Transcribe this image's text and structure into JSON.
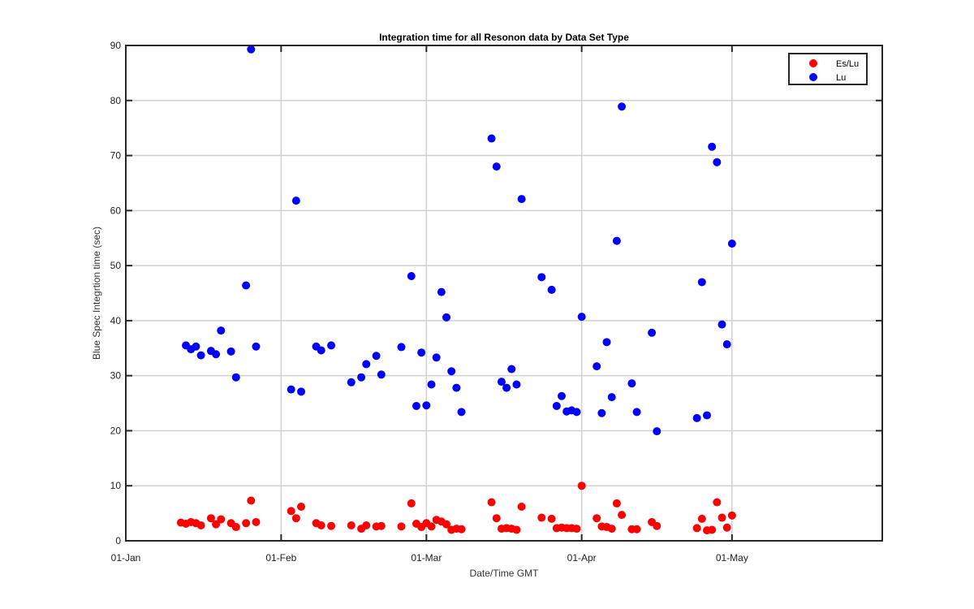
{
  "chart_data": {
    "type": "scatter",
    "title": "Integration time for all Resonon data by Data Set Type",
    "xlabel": "Date/Time GMT",
    "ylabel": "Blue Spec Integrtion time (sec)",
    "x_axis_kind": "date",
    "year": 2000,
    "xlim": [
      "2000-01-01",
      "2000-05-31"
    ],
    "ylim": [
      0,
      90
    ],
    "x_ticks": [
      {
        "date": "2000-01-01",
        "label": "01-Jan"
      },
      {
        "date": "2000-02-01",
        "label": "01-Feb"
      },
      {
        "date": "2000-03-01",
        "label": "01-Mar"
      },
      {
        "date": "2000-04-01",
        "label": "01-Apr"
      },
      {
        "date": "2000-05-01",
        "label": "01-May"
      }
    ],
    "y_ticks": [
      0,
      10,
      20,
      30,
      40,
      50,
      60,
      70,
      80,
      90
    ],
    "grid": true,
    "legend_position": "top-right",
    "series": [
      {
        "name": "Es/Lu",
        "color": "#ff0000",
        "points": [
          {
            "x": "2000-01-12",
            "y": 3.3
          },
          {
            "x": "2000-01-13",
            "y": 3.1
          },
          {
            "x": "2000-01-14",
            "y": 3.4
          },
          {
            "x": "2000-01-15",
            "y": 3.2
          },
          {
            "x": "2000-01-16",
            "y": 2.8
          },
          {
            "x": "2000-01-18",
            "y": 4.1
          },
          {
            "x": "2000-01-19",
            "y": 3.0
          },
          {
            "x": "2000-01-20",
            "y": 3.9
          },
          {
            "x": "2000-01-22",
            "y": 3.2
          },
          {
            "x": "2000-01-23",
            "y": 2.5
          },
          {
            "x": "2000-01-25",
            "y": 3.2
          },
          {
            "x": "2000-01-26",
            "y": 7.3
          },
          {
            "x": "2000-01-27",
            "y": 3.4
          },
          {
            "x": "2000-02-03",
            "y": 5.4
          },
          {
            "x": "2000-02-04",
            "y": 4.1
          },
          {
            "x": "2000-02-05",
            "y": 6.2
          },
          {
            "x": "2000-02-08",
            "y": 3.2
          },
          {
            "x": "2000-02-09",
            "y": 2.8
          },
          {
            "x": "2000-02-11",
            "y": 2.7
          },
          {
            "x": "2000-02-15",
            "y": 2.8
          },
          {
            "x": "2000-02-17",
            "y": 2.2
          },
          {
            "x": "2000-02-18",
            "y": 2.8
          },
          {
            "x": "2000-02-20",
            "y": 2.6
          },
          {
            "x": "2000-02-21",
            "y": 2.7
          },
          {
            "x": "2000-02-25",
            "y": 2.6
          },
          {
            "x": "2000-02-27",
            "y": 6.8
          },
          {
            "x": "2000-02-28",
            "y": 3.1
          },
          {
            "x": "2000-02-29",
            "y": 2.5
          },
          {
            "x": "2000-03-01",
            "y": 3.2
          },
          {
            "x": "2000-03-02",
            "y": 2.6
          },
          {
            "x": "2000-03-03",
            "y": 3.8
          },
          {
            "x": "2000-03-04",
            "y": 3.5
          },
          {
            "x": "2000-03-05",
            "y": 3.0
          },
          {
            "x": "2000-03-06",
            "y": 2.0
          },
          {
            "x": "2000-03-07",
            "y": 2.2
          },
          {
            "x": "2000-03-08",
            "y": 2.1
          },
          {
            "x": "2000-03-14",
            "y": 7.0
          },
          {
            "x": "2000-03-15",
            "y": 4.1
          },
          {
            "x": "2000-03-16",
            "y": 2.2
          },
          {
            "x": "2000-03-17",
            "y": 2.3
          },
          {
            "x": "2000-03-18",
            "y": 2.2
          },
          {
            "x": "2000-03-19",
            "y": 2.0
          },
          {
            "x": "2000-03-20",
            "y": 6.2
          },
          {
            "x": "2000-03-24",
            "y": 4.2
          },
          {
            "x": "2000-03-26",
            "y": 4.0
          },
          {
            "x": "2000-03-27",
            "y": 2.3
          },
          {
            "x": "2000-03-28",
            "y": 2.4
          },
          {
            "x": "2000-03-29",
            "y": 2.3
          },
          {
            "x": "2000-03-30",
            "y": 2.3
          },
          {
            "x": "2000-03-31",
            "y": 2.2
          },
          {
            "x": "2000-04-01",
            "y": 10.0
          },
          {
            "x": "2000-04-04",
            "y": 4.1
          },
          {
            "x": "2000-04-05",
            "y": 2.6
          },
          {
            "x": "2000-04-06",
            "y": 2.5
          },
          {
            "x": "2000-04-07",
            "y": 2.2
          },
          {
            "x": "2000-04-08",
            "y": 6.8
          },
          {
            "x": "2000-04-09",
            "y": 4.7
          },
          {
            "x": "2000-04-11",
            "y": 2.1
          },
          {
            "x": "2000-04-12",
            "y": 2.1
          },
          {
            "x": "2000-04-15",
            "y": 3.4
          },
          {
            "x": "2000-04-16",
            "y": 2.7
          },
          {
            "x": "2000-04-24",
            "y": 2.3
          },
          {
            "x": "2000-04-25",
            "y": 4.0
          },
          {
            "x": "2000-04-26",
            "y": 1.9
          },
          {
            "x": "2000-04-27",
            "y": 2.0
          },
          {
            "x": "2000-04-28",
            "y": 7.0
          },
          {
            "x": "2000-04-29",
            "y": 4.2
          },
          {
            "x": "2000-04-30",
            "y": 2.4
          },
          {
            "x": "2000-05-01",
            "y": 4.6
          }
        ]
      },
      {
        "name": "Lu",
        "color": "#0000ff",
        "points": [
          {
            "x": "2000-01-13",
            "y": 35.5
          },
          {
            "x": "2000-01-14",
            "y": 34.8
          },
          {
            "x": "2000-01-15",
            "y": 35.3
          },
          {
            "x": "2000-01-16",
            "y": 33.7
          },
          {
            "x": "2000-01-18",
            "y": 34.5
          },
          {
            "x": "2000-01-19",
            "y": 33.9
          },
          {
            "x": "2000-01-20",
            "y": 38.2
          },
          {
            "x": "2000-01-22",
            "y": 34.4
          },
          {
            "x": "2000-01-23",
            "y": 29.7
          },
          {
            "x": "2000-01-25",
            "y": 46.4
          },
          {
            "x": "2000-01-26",
            "y": 89.3
          },
          {
            "x": "2000-01-27",
            "y": 35.3
          },
          {
            "x": "2000-02-03",
            "y": 27.5
          },
          {
            "x": "2000-02-04",
            "y": 61.8
          },
          {
            "x": "2000-02-05",
            "y": 27.1
          },
          {
            "x": "2000-02-08",
            "y": 35.3
          },
          {
            "x": "2000-02-09",
            "y": 34.6
          },
          {
            "x": "2000-02-11",
            "y": 35.5
          },
          {
            "x": "2000-02-15",
            "y": 28.8
          },
          {
            "x": "2000-02-17",
            "y": 29.7
          },
          {
            "x": "2000-02-18",
            "y": 32.1
          },
          {
            "x": "2000-02-20",
            "y": 33.6
          },
          {
            "x": "2000-02-21",
            "y": 30.2
          },
          {
            "x": "2000-02-25",
            "y": 35.2
          },
          {
            "x": "2000-02-27",
            "y": 48.1
          },
          {
            "x": "2000-02-28",
            "y": 24.5
          },
          {
            "x": "2000-02-29",
            "y": 34.2
          },
          {
            "x": "2000-03-01",
            "y": 24.6
          },
          {
            "x": "2000-03-02",
            "y": 28.4
          },
          {
            "x": "2000-03-03",
            "y": 33.3
          },
          {
            "x": "2000-03-04",
            "y": 45.2
          },
          {
            "x": "2000-03-05",
            "y": 40.6
          },
          {
            "x": "2000-03-06",
            "y": 30.8
          },
          {
            "x": "2000-03-07",
            "y": 27.8
          },
          {
            "x": "2000-03-08",
            "y": 23.4
          },
          {
            "x": "2000-03-14",
            "y": 73.1
          },
          {
            "x": "2000-03-15",
            "y": 68.0
          },
          {
            "x": "2000-03-16",
            "y": 28.9
          },
          {
            "x": "2000-03-17",
            "y": 27.8
          },
          {
            "x": "2000-03-18",
            "y": 31.2
          },
          {
            "x": "2000-03-19",
            "y": 28.4
          },
          {
            "x": "2000-03-20",
            "y": 62.1
          },
          {
            "x": "2000-03-24",
            "y": 47.9
          },
          {
            "x": "2000-03-26",
            "y": 45.6
          },
          {
            "x": "2000-03-27",
            "y": 24.5
          },
          {
            "x": "2000-03-28",
            "y": 26.3
          },
          {
            "x": "2000-03-29",
            "y": 23.5
          },
          {
            "x": "2000-03-30",
            "y": 23.7
          },
          {
            "x": "2000-03-31",
            "y": 23.4
          },
          {
            "x": "2000-04-01",
            "y": 40.7
          },
          {
            "x": "2000-04-04",
            "y": 31.7
          },
          {
            "x": "2000-04-05",
            "y": 23.2
          },
          {
            "x": "2000-04-06",
            "y": 36.1
          },
          {
            "x": "2000-04-07",
            "y": 26.1
          },
          {
            "x": "2000-04-08",
            "y": 54.5
          },
          {
            "x": "2000-04-09",
            "y": 78.9
          },
          {
            "x": "2000-04-11",
            "y": 28.6
          },
          {
            "x": "2000-04-12",
            "y": 23.4
          },
          {
            "x": "2000-04-15",
            "y": 37.8
          },
          {
            "x": "2000-04-16",
            "y": 19.9
          },
          {
            "x": "2000-04-24",
            "y": 22.3
          },
          {
            "x": "2000-04-25",
            "y": 47.0
          },
          {
            "x": "2000-04-26",
            "y": 22.8
          },
          {
            "x": "2000-04-27",
            "y": 71.6
          },
          {
            "x": "2000-04-28",
            "y": 68.8
          },
          {
            "x": "2000-04-29",
            "y": 39.3
          },
          {
            "x": "2000-04-30",
            "y": 35.7
          },
          {
            "x": "2000-05-01",
            "y": 54.0
          }
        ]
      }
    ]
  }
}
